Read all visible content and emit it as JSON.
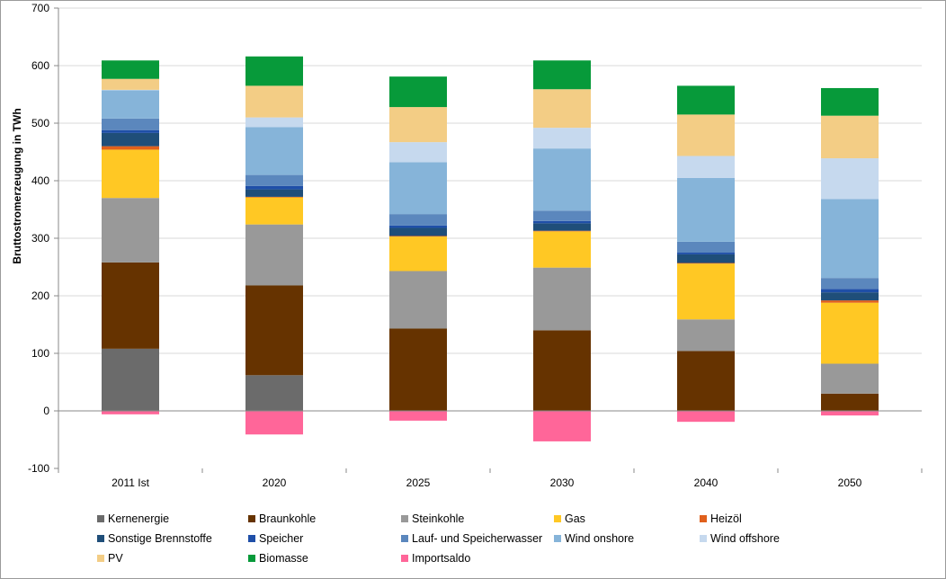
{
  "chart_data": {
    "type": "bar",
    "stacked": true,
    "ylabel": "Bruttostromerzeugung  in TWh",
    "ylim": [
      -100,
      700
    ],
    "yticks": [
      -100,
      0,
      100,
      200,
      300,
      400,
      500,
      600,
      700
    ],
    "grid": true,
    "legend_position": "bottom",
    "categories": [
      "2011 Ist",
      "2020",
      "2025",
      "2030",
      "2040",
      "2050"
    ],
    "series": [
      {
        "name": "Kernenergie",
        "color": "#6b6b6b",
        "values": [
          108,
          62,
          0,
          0,
          0,
          0
        ]
      },
      {
        "name": "Braunkohle",
        "color": "#663300",
        "values": [
          150,
          156,
          143,
          140,
          104,
          30
        ]
      },
      {
        "name": "Steinkohle",
        "color": "#999999",
        "values": [
          112,
          106,
          100,
          109,
          55,
          52
        ]
      },
      {
        "name": "Gas",
        "color": "#ffc824",
        "values": [
          84,
          47,
          60,
          63,
          97,
          106
        ]
      },
      {
        "name": "Heizöl",
        "color": "#e0601c",
        "values": [
          6,
          1,
          1,
          1,
          1,
          4
        ]
      },
      {
        "name": "Sonstige Brennstoffe",
        "color": "#1f4e79",
        "values": [
          23,
          13,
          14,
          13,
          15,
          14
        ]
      },
      {
        "name": "Speicher",
        "color": "#1f4fa8",
        "values": [
          5,
          6,
          4,
          4,
          3,
          6
        ]
      },
      {
        "name": "Lauf- und Speicherwasser",
        "color": "#5b87bd",
        "values": [
          20,
          19,
          20,
          18,
          19,
          19
        ]
      },
      {
        "name": "Wind onshore",
        "color": "#86b4d9",
        "values": [
          49,
          83,
          90,
          108,
          111,
          137
        ]
      },
      {
        "name": "Wind offshore",
        "color": "#c6d9ee",
        "values": [
          1,
          17,
          35,
          36,
          38,
          71
        ]
      },
      {
        "name": "PV",
        "color": "#f3cd85",
        "values": [
          19,
          55,
          61,
          67,
          72,
          74
        ]
      },
      {
        "name": "Biomasse",
        "color": "#079a3a",
        "values": [
          32,
          51,
          53,
          50,
          50,
          48
        ]
      },
      {
        "name": "Importsaldo",
        "color": "#ff6699",
        "values": [
          -6,
          -41,
          -17,
          -53,
          -19,
          -8
        ]
      }
    ]
  }
}
